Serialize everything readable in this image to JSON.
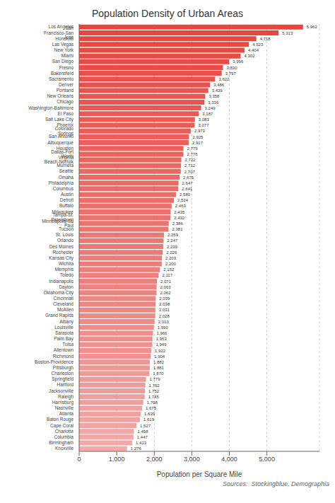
{
  "chart_data": {
    "type": "bar",
    "orientation": "horizontal",
    "title": "Population Density of Urban Areas",
    "xlabel": "Population per Square Mile",
    "annotations": [
      "Sources:  Stockingblue, Demographia"
    ],
    "categories": [
      "Los Angeles",
      "San Francisco-San Jose",
      "Honolulu",
      "Las Vegas",
      "New York",
      "Miami",
      "San Diego",
      "Fresno",
      "Bakersfield",
      "Sacramento",
      "Denver",
      "Portland",
      "New Orleans",
      "Chicago",
      "Washington-Baltimore",
      "El Paso",
      "Salt Lake City",
      "Phoenix",
      "Colorado Springs",
      "San Antonio",
      "Albuquerque",
      "Houston",
      "Dallas-Fort Worth",
      "Virginia Beach-Norfolk",
      "Murrieta",
      "Seattle",
      "Omaha",
      "Philadelphia",
      "Columbus",
      "Austin",
      "Detroit",
      "Buffalo",
      "Milwaukee",
      "Tampa-St. Petersburg",
      "Minneapolis-St. Paul",
      "Tucson",
      "St. Louis",
      "Orlando",
      "Des Moines",
      "Rochester",
      "Kansas City",
      "Wichita",
      "Memphis",
      "Toledo",
      "Indianapolis",
      "Dayton",
      "Oklahoma City",
      "Cincinnati",
      "Cleveland",
      "McAllen",
      "Grand Rapids",
      "Albany",
      "Louisville",
      "Sarasota",
      "Palm Bay",
      "Tulsa",
      "Allentown",
      "Richmond",
      "Boston-Providence",
      "Pittsburgh",
      "Charleston",
      "Springfield",
      "Hartford",
      "Jacksonville",
      "Raleigh",
      "Harrisburg",
      "Nashville",
      "Atlanta",
      "Baton Rouge",
      "Cape Coral",
      "Charlotte",
      "Columbia",
      "Birmingham",
      "Knoxville"
    ],
    "values": [
      5962,
      5313,
      4718,
      4523,
      4404,
      4302,
      3996,
      3830,
      3797,
      3622,
      3486,
      3439,
      3358,
      3336,
      3249,
      3187,
      3083,
      3077,
      2973,
      2925,
      2917,
      2779,
      2776,
      2722,
      2712,
      2707,
      2675,
      2647,
      2641,
      2580,
      2524,
      2463,
      2435,
      2432,
      2386,
      2381,
      2259,
      2247,
      2239,
      2226,
      2203,
      2200,
      2152,
      2117,
      2071,
      2063,
      2062,
      2039,
      2038,
      2031,
      2028,
      2010,
      1990,
      1966,
      1953,
      1949,
      1922,
      1904,
      1882,
      1881,
      1870,
      1779,
      1762,
      1752,
      1745,
      1708,
      1675,
      1639,
      1619,
      1527,
      1458,
      1447,
      1413,
      1276
    ],
    "value_labels": [
      "5,962",
      "5,313",
      "4,718",
      "4,523",
      "4,404",
      "4,302",
      "3,996",
      "3,830",
      "3,797",
      "3,622",
      "3,486",
      "3,439",
      "3,358",
      "3,336",
      "3,249",
      "3,187",
      "3,083",
      "3,077",
      "2,973",
      "2,925",
      "2,917",
      "2,779",
      "2,776",
      "2,722",
      "2,712",
      "2,707",
      "2,675",
      "2,647",
      "2,641",
      "2,580",
      "2,524",
      "2,463",
      "2,435",
      "2,432",
      "2,386",
      "2,381",
      "2,259",
      "2,247",
      "2,239",
      "2,226",
      "2,203",
      "2,200",
      "2,152",
      "2,117",
      "2,071",
      "2,063",
      "2,062",
      "2,039",
      "2,038",
      "2,031",
      "2,028",
      "2,010",
      "1,990",
      "1,966",
      "1,953",
      "1,949",
      "1,922",
      "1,904",
      "1,882",
      "1,881",
      "1,870",
      "1,779",
      "1,762",
      "1,752",
      "1,745",
      "1,708",
      "1,675",
      "1,639",
      "1,619",
      "1,527",
      "1,458",
      "1,447",
      "1,413",
      "1,276"
    ],
    "data_labels": true,
    "colors": [
      "#e8453c",
      "#e8463d",
      "#e8473f",
      "#e84940",
      "#e84a42",
      "#e84b43",
      "#e84d45",
      "#e84e46",
      "#e95048",
      "#e95149",
      "#e9524b",
      "#e9544c",
      "#e9554e",
      "#e9564f",
      "#e95851",
      "#ea5952",
      "#ea5b54",
      "#ea5c55",
      "#ea5d57",
      "#ea5f58",
      "#ea605a",
      "#ea625b",
      "#eb635d",
      "#eb645e",
      "#eb6660",
      "#eb6761",
      "#eb6863",
      "#eb6a64",
      "#eb6b66",
      "#eb6d67",
      "#ec6e69",
      "#ec6f6a",
      "#ec716c",
      "#ec726d",
      "#ec746f",
      "#ec7570",
      "#ec7672",
      "#ed7873",
      "#ed7975",
      "#ed7a76",
      "#ed7c78",
      "#ed7d79",
      "#ed7f7b",
      "#ed807c",
      "#ee817e",
      "#ee837f",
      "#ee8481",
      "#ee8682",
      "#ee8784",
      "#ee8885",
      "#ee8a87",
      "#ee8b88",
      "#ef8c8a",
      "#ef8e8b",
      "#ef8f8d",
      "#ef918e",
      "#ef9290",
      "#ef9391",
      "#ef9593",
      "#f09694",
      "#f09896",
      "#f09997",
      "#f09a99",
      "#f09c9a",
      "#f09d9c",
      "#f09e9d",
      "#f1a09f",
      "#f1a1a0",
      "#f1a3a2",
      "#f1a4a3",
      "#f1a5a5",
      "#f1a7a6",
      "#f1a8a8",
      "#f2aaaa"
    ],
    "xlim": [
      0,
      6400
    ],
    "xticks": [
      0,
      {
        "value": 1000,
        "label": "1,000"
      },
      {
        "value": 2000,
        "label": "2,000"
      },
      {
        "value": 3000,
        "label": "3,000"
      },
      {
        "value": 4000,
        "label": "4,000"
      },
      {
        "value": 5000,
        "label": "5,000"
      }
    ],
    "grid": true
  }
}
